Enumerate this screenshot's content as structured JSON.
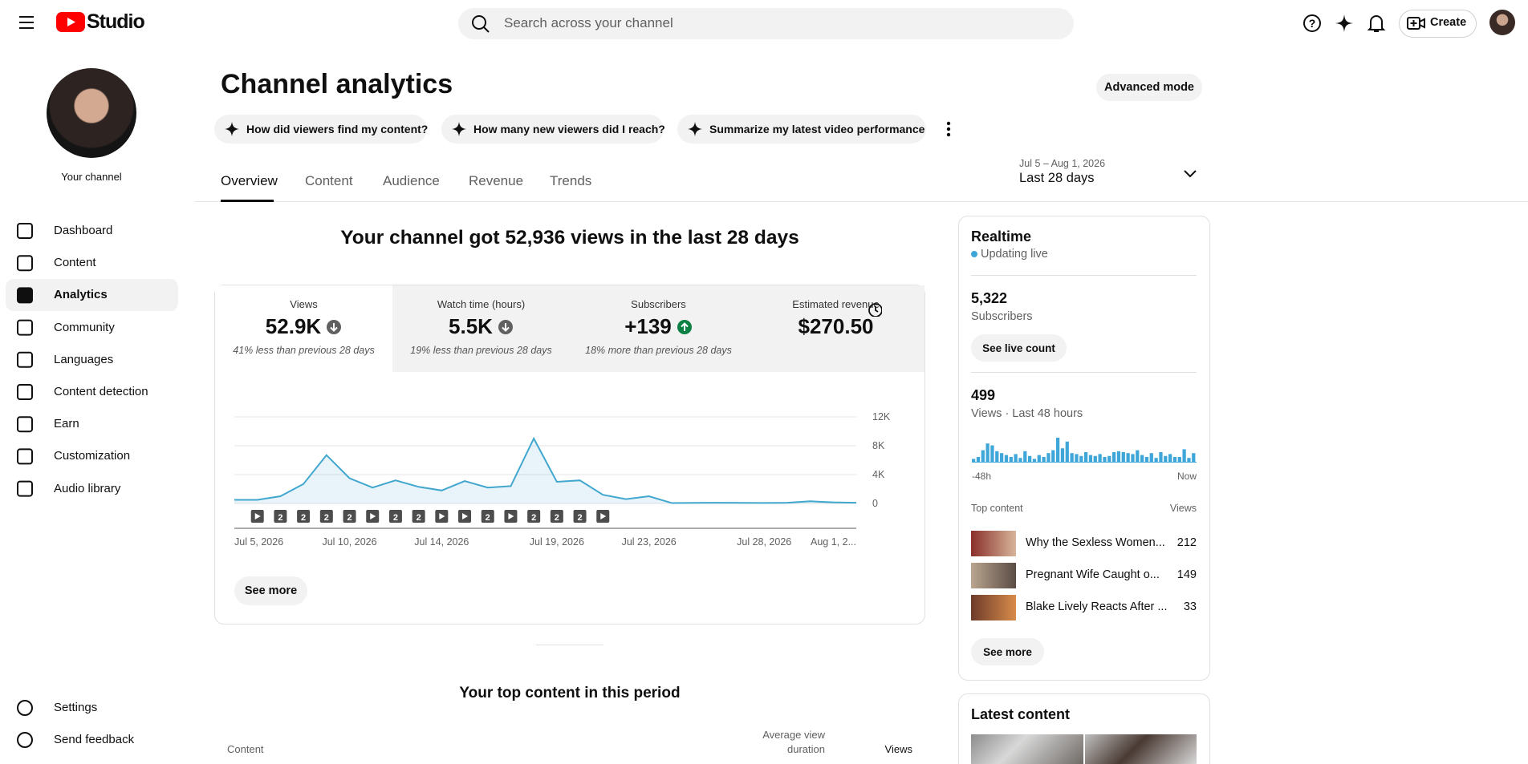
{
  "header": {
    "logo": "Studio",
    "search_placeholder": "Search across your channel",
    "create_button": "Create"
  },
  "sidebar": {
    "channel_label": "Your channel",
    "nav": [
      "Dashboard",
      "Content",
      "Analytics",
      "Community",
      "Languages",
      "Content detection",
      "Earn",
      "Customization",
      "Audio library"
    ],
    "footer": [
      "Settings",
      "Send feedback"
    ]
  },
  "page": {
    "title": "Channel analytics",
    "advanced_mode": "Advanced mode",
    "prompts": [
      "How did viewers find my content?",
      "How many new viewers did I reach?",
      "Summarize my latest video performance"
    ],
    "tabs": [
      "Overview",
      "Content",
      "Audience",
      "Revenue",
      "Trends"
    ],
    "date_range": "Jul 5 – Aug 1, 2026",
    "period": "Last 28 days",
    "summary": "Your channel got 52,936 views in the last 28 days",
    "metrics": [
      {
        "label": "Views",
        "value": "52.9K",
        "trend": "down",
        "note": "41% less than previous 28 days"
      },
      {
        "label": "Watch time (hours)",
        "value": "5.5K",
        "trend": "down",
        "note": "19% less than previous 28 days"
      },
      {
        "label": "Subscribers",
        "value": "+139",
        "trend": "up",
        "note": "18% more than previous 28 days"
      },
      {
        "label": "Estimated revenue",
        "value": "$270.50"
      }
    ],
    "see_more": "See more",
    "top_content_title": "Your top content in this period",
    "table_headers": {
      "content": "Content",
      "avg_duration": [
        "Average view",
        "duration"
      ],
      "views": "Views"
    }
  },
  "chart_data": {
    "type": "line",
    "color": "#41a7cf",
    "categories": [
      "Jul 5, 2026",
      null,
      null,
      null,
      null,
      "Jul 10, 2026",
      null,
      null,
      null,
      "Jul 14, 2026",
      null,
      null,
      null,
      null,
      "Jul 19, 2026",
      null,
      null,
      null,
      "Jul 23, 2026",
      null,
      null,
      null,
      null,
      "Jul 28, 2026",
      null,
      null,
      null,
      "Aug 1, 2..."
    ],
    "values": [
      500,
      500,
      1000,
      2700,
      6700,
      3500,
      2200,
      3200,
      2300,
      1800,
      3100,
      2200,
      2400,
      9000,
      3000,
      3200,
      1200,
      600,
      1000,
      50,
      80,
      100,
      80,
      70,
      100,
      300,
      150,
      100
    ],
    "uploads": [
      null,
      1,
      2,
      2,
      2,
      2,
      1,
      2,
      2,
      1,
      1,
      2,
      1,
      2,
      2,
      2,
      1,
      null,
      null,
      null,
      null,
      null,
      null,
      null,
      null,
      null,
      null,
      null
    ],
    "ylim": [
      0,
      12000
    ],
    "yticks": [
      0,
      {
        "value": 4000,
        "label": "4K"
      },
      {
        "value": 8000,
        "label": "8K"
      },
      {
        "value": 12000,
        "label": "12K"
      }
    ],
    "grid": true
  },
  "realtime": {
    "title": "Realtime",
    "status": "Updating live",
    "subscribers": "5,322",
    "subscribers_label": "Subscribers",
    "live_count_button": "See live count",
    "views": "499",
    "views_label": "Views · Last 48 hours",
    "hourly_views": [
      3,
      5,
      12,
      19,
      17,
      11,
      9,
      7,
      5,
      8,
      4,
      11,
      6,
      3,
      7,
      5,
      9,
      12,
      25,
      14,
      21,
      9,
      8,
      6,
      10,
      7,
      6,
      8,
      5,
      6,
      10,
      11,
      10,
      9,
      8,
      12,
      7,
      5,
      9,
      4,
      10,
      6,
      8,
      5,
      5,
      13,
      4,
      9
    ],
    "start_label": "-48h",
    "end_label": "Now",
    "top_content_label": "Top content",
    "views_header": "Views",
    "top_content": [
      {
        "title": "Why the Sexless Women...",
        "views": 212
      },
      {
        "title": "Pregnant Wife Caught o...",
        "views": 149
      },
      {
        "title": "Blake Lively Reacts After ...",
        "views": 33
      }
    ],
    "see_more": "See more",
    "latest_content": "Latest content"
  }
}
